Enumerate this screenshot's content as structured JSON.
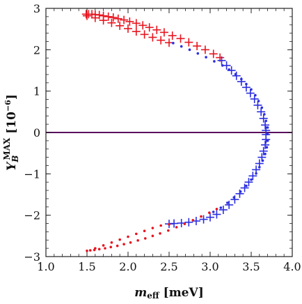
{
  "chart_data": {
    "type": "scatter",
    "title": "",
    "xlabel": {
      "main": "m",
      "sub": "eff",
      "unit": " [meV]"
    },
    "ylabel": {
      "main": "Y",
      "sub": "B",
      "sup": "MAX",
      "unit": " [10",
      "unit_exp": "−6",
      "unit_close": "]"
    },
    "xlim": [
      1.0,
      4.0
    ],
    "ylim": [
      -3,
      3
    ],
    "x_ticks": [
      1.0,
      1.5,
      2.0,
      2.5,
      3.0,
      3.5,
      4.0
    ],
    "x_tick_labels": [
      "1.0",
      "1.5",
      "2.0",
      "2.5",
      "3.0",
      "3.5",
      "4.0"
    ],
    "y_ticks": [
      -3,
      -2,
      -1,
      0,
      1,
      2,
      3
    ],
    "y_tick_labels": [
      "−3",
      "−2",
      "−1",
      "0",
      "1",
      "2",
      "3"
    ],
    "grid": false,
    "reference_line": {
      "y": 0,
      "color": "#5a0f5e"
    },
    "series": [
      {
        "marker": "cross",
        "color": "#e8141e",
        "points": [
          [
            1.49,
            2.86
          ],
          [
            1.52,
            2.86
          ],
          [
            1.56,
            2.86
          ],
          [
            1.6,
            2.85
          ],
          [
            1.65,
            2.84
          ],
          [
            1.7,
            2.82
          ],
          [
            1.76,
            2.8
          ],
          [
            1.82,
            2.78
          ],
          [
            1.88,
            2.75
          ],
          [
            1.95,
            2.72
          ],
          [
            2.02,
            2.68
          ],
          [
            2.1,
            2.64
          ],
          [
            2.18,
            2.59
          ],
          [
            2.26,
            2.54
          ],
          [
            2.35,
            2.48
          ],
          [
            2.44,
            2.42
          ],
          [
            2.54,
            2.34
          ],
          [
            2.64,
            2.27
          ],
          [
            2.74,
            2.18
          ],
          [
            2.84,
            2.09
          ],
          [
            2.94,
            2.0
          ],
          [
            3.04,
            1.9
          ],
          [
            3.12,
            1.81
          ],
          [
            1.5,
            2.82
          ],
          [
            1.6,
            2.77
          ],
          [
            1.7,
            2.71
          ],
          [
            1.8,
            2.65
          ],
          [
            1.9,
            2.58
          ],
          [
            2.0,
            2.51
          ],
          [
            2.1,
            2.44
          ],
          [
            2.2,
            2.37
          ],
          [
            2.3,
            2.3
          ],
          [
            2.4,
            2.23
          ],
          [
            2.5,
            2.17
          ]
        ]
      },
      {
        "marker": "cross",
        "color": "#2a2ee0",
        "points": [
          [
            3.14,
            1.74
          ],
          [
            3.2,
            1.62
          ],
          [
            3.26,
            1.5
          ],
          [
            3.32,
            1.37
          ],
          [
            3.38,
            1.23
          ],
          [
            3.44,
            1.09
          ],
          [
            3.49,
            0.95
          ],
          [
            3.54,
            0.81
          ],
          [
            3.58,
            0.66
          ],
          [
            3.62,
            0.5
          ],
          [
            3.65,
            0.34
          ],
          [
            3.67,
            0.18
          ],
          [
            3.68,
            0.05
          ],
          [
            3.68,
            -0.05
          ],
          [
            3.68,
            -0.17
          ],
          [
            3.67,
            -0.3
          ],
          [
            3.65,
            -0.45
          ],
          [
            3.63,
            -0.6
          ],
          [
            3.6,
            -0.75
          ],
          [
            3.56,
            -0.9
          ],
          [
            3.52,
            -1.05
          ],
          [
            3.47,
            -1.2
          ],
          [
            3.42,
            -1.34
          ],
          [
            3.36,
            -1.48
          ],
          [
            3.3,
            -1.62
          ],
          [
            3.23,
            -1.75
          ],
          [
            3.16,
            -1.87
          ],
          [
            3.08,
            -1.98
          ],
          [
            3.0,
            -2.05
          ],
          [
            2.92,
            -2.1
          ],
          [
            2.83,
            -2.14
          ],
          [
            2.74,
            -2.17
          ],
          [
            2.65,
            -2.19
          ],
          [
            2.56,
            -2.2
          ],
          [
            2.5,
            -2.21
          ]
        ]
      },
      {
        "marker": "dot",
        "color": "#2a2ee0",
        "points": [
          [
            2.55,
            2.16
          ],
          [
            2.65,
            2.08
          ],
          [
            2.75,
            2.0
          ],
          [
            2.85,
            1.91
          ],
          [
            2.95,
            1.82
          ],
          [
            3.05,
            1.72
          ],
          [
            3.15,
            1.62
          ],
          [
            3.23,
            1.52
          ],
          [
            3.31,
            1.41
          ],
          [
            3.38,
            1.29
          ],
          [
            3.44,
            1.17
          ],
          [
            3.5,
            1.04
          ],
          [
            3.55,
            0.9
          ],
          [
            3.59,
            0.76
          ],
          [
            3.63,
            0.6
          ],
          [
            3.66,
            0.44
          ],
          [
            3.68,
            0.28
          ],
          [
            3.7,
            0.12
          ],
          [
            3.7,
            -0.04
          ],
          [
            3.7,
            -0.2
          ],
          [
            3.69,
            -0.36
          ],
          [
            3.67,
            -0.52
          ],
          [
            3.64,
            -0.68
          ],
          [
            3.6,
            -0.84
          ],
          [
            3.56,
            -0.99
          ],
          [
            3.5,
            -1.14
          ],
          [
            3.44,
            -1.29
          ],
          [
            3.37,
            -1.43
          ],
          [
            3.29,
            -1.57
          ],
          [
            3.21,
            -1.7
          ],
          [
            3.13,
            -1.82
          ],
          [
            3.04,
            -1.92
          ]
        ]
      },
      {
        "marker": "dot",
        "color": "#e8141e",
        "points": [
          [
            1.5,
            -2.86
          ],
          [
            1.54,
            -2.85
          ],
          [
            1.59,
            -2.84
          ],
          [
            1.65,
            -2.82
          ],
          [
            1.72,
            -2.8
          ],
          [
            1.79,
            -2.77
          ],
          [
            1.87,
            -2.74
          ],
          [
            1.95,
            -2.7
          ],
          [
            2.03,
            -2.66
          ],
          [
            2.12,
            -2.61
          ],
          [
            2.21,
            -2.56
          ],
          [
            2.3,
            -2.5
          ],
          [
            2.39,
            -2.44
          ],
          [
            2.49,
            -2.37
          ],
          [
            2.59,
            -2.29
          ],
          [
            2.69,
            -2.21
          ],
          [
            2.79,
            -2.12
          ],
          [
            2.89,
            -2.03
          ],
          [
            2.99,
            -1.94
          ],
          [
            3.08,
            -1.85
          ],
          [
            1.6,
            -2.8
          ],
          [
            1.7,
            -2.73
          ],
          [
            1.8,
            -2.66
          ],
          [
            1.9,
            -2.59
          ],
          [
            2.0,
            -2.52
          ],
          [
            2.1,
            -2.45
          ],
          [
            2.2,
            -2.38
          ],
          [
            2.3,
            -2.31
          ],
          [
            2.4,
            -2.25
          ],
          [
            2.5,
            -2.22
          ]
        ]
      }
    ]
  }
}
